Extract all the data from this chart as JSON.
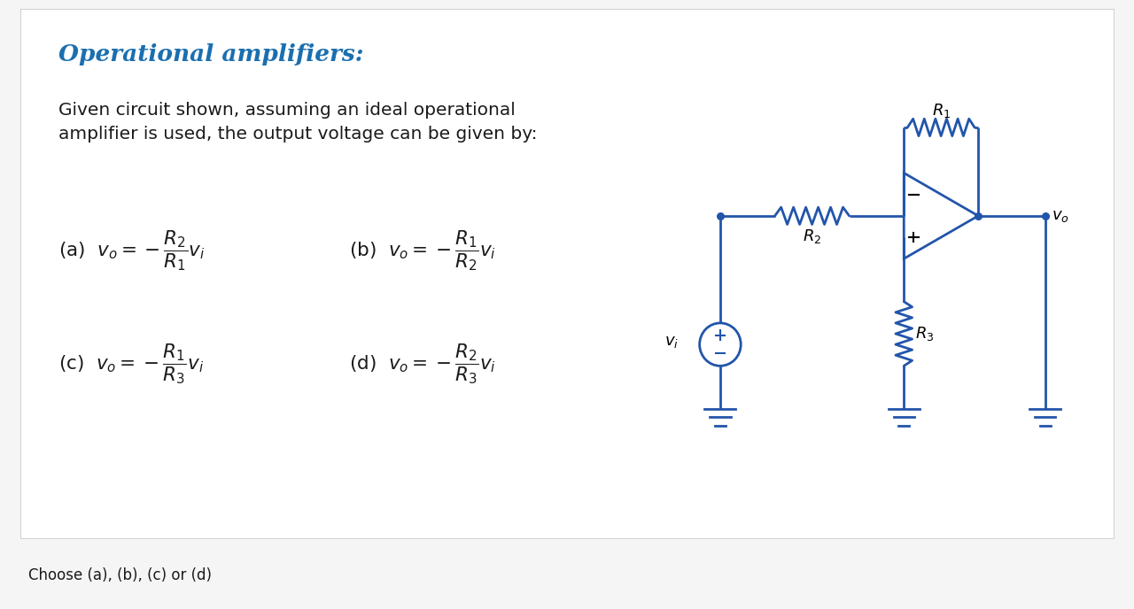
{
  "title": "Operational amplifiers:",
  "title_color": "#1a6faf",
  "description": "Given circuit shown, assuming an ideal operational\namplifier is used, the output voltage can be given by:",
  "footer": "Choose (a), (b), (c) or (d)",
  "circuit_color": "#2255aa",
  "bg_color": "#f5f5f5",
  "card_bg": "#ffffff",
  "text_color": "#1a1a1a",
  "card_border": "#c8c8c8"
}
